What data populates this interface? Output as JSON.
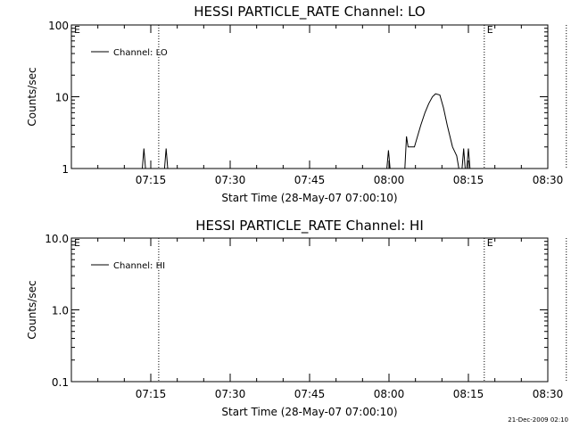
{
  "footer": {
    "timestamp": "21-Dec-2009 02:10"
  },
  "chart_data": [
    {
      "type": "line",
      "title": "HESSI PARTICLE_RATE Channel: LO",
      "xlabel": "Start Time (28-May-07 07:00:10)",
      "ylabel": "Counts/sec",
      "yscale": "log",
      "ylim": [
        1,
        100
      ],
      "yticks": [
        1,
        10,
        100
      ],
      "ytick_labels": [
        "1",
        "10",
        "100"
      ],
      "xlim_minutes": [
        0,
        90
      ],
      "xticks": [
        15,
        30,
        45,
        60,
        75,
        90
      ],
      "xtick_labels": [
        "07:15",
        "07:30",
        "07:45",
        "08:00",
        "08:15",
        "08:30"
      ],
      "event_lines_minutes": [
        16.5,
        78,
        93.5
      ],
      "event_flag_labels": [
        "E",
        "E"
      ],
      "event_flag_positions_minutes": [
        0.5,
        78.5
      ],
      "legend": {
        "label": "Channel: LO",
        "position": "top-left"
      },
      "series": [
        {
          "name": "Channel: LO",
          "segments": [
            {
              "x": [
                13.4,
                13.7,
                14.0
              ],
              "y": [
                1.0,
                1.9,
                1.0
              ]
            },
            {
              "x": [
                17.6,
                17.9,
                18.2
              ],
              "y": [
                1.0,
                1.9,
                1.0
              ]
            },
            {
              "x": [
                59.6,
                59.9,
                60.2
              ],
              "y": [
                1.0,
                1.8,
                1.0
              ]
            },
            {
              "x": [
                63.0,
                63.3,
                63.6,
                64.8,
                66.0,
                66.8,
                67.5,
                68.2,
                68.8,
                69.6,
                70.3,
                71.0,
                72.0,
                72.8,
                73.2
              ],
              "y": [
                1.0,
                2.8,
                2.0,
                2.0,
                4.0,
                6.0,
                8.0,
                10.0,
                11.0,
                10.6,
                7.0,
                4.0,
                2.0,
                1.5,
                1.0
              ]
            },
            {
              "x": [
                73.8,
                74.1,
                74.4
              ],
              "y": [
                1.0,
                1.9,
                1.0
              ]
            },
            {
              "x": [
                74.7,
                75.0,
                75.3
              ],
              "y": [
                1.0,
                1.9,
                1.0
              ]
            }
          ]
        }
      ]
    },
    {
      "type": "line",
      "title": "HESSI PARTICLE_RATE Channel: HI",
      "xlabel": "Start Time (28-May-07 07:00:10)",
      "ylabel": "Counts/sec",
      "yscale": "log",
      "ylim": [
        0.1,
        10
      ],
      "yticks": [
        0.1,
        1,
        10
      ],
      "ytick_labels": [
        "0.1",
        "1.0",
        "10.0"
      ],
      "xlim_minutes": [
        0,
        90
      ],
      "xticks": [
        15,
        30,
        45,
        60,
        75,
        90
      ],
      "xtick_labels": [
        "07:15",
        "07:30",
        "07:45",
        "08:00",
        "08:15",
        "08:30"
      ],
      "event_lines_minutes": [
        16.5,
        78,
        93.5
      ],
      "event_flag_labels": [
        "E",
        "E"
      ],
      "event_flag_positions_minutes": [
        0.5,
        78.5
      ],
      "legend": {
        "label": "Channel: HI",
        "position": "top-left"
      },
      "series": [
        {
          "name": "Channel: HI",
          "segments": []
        }
      ]
    }
  ]
}
